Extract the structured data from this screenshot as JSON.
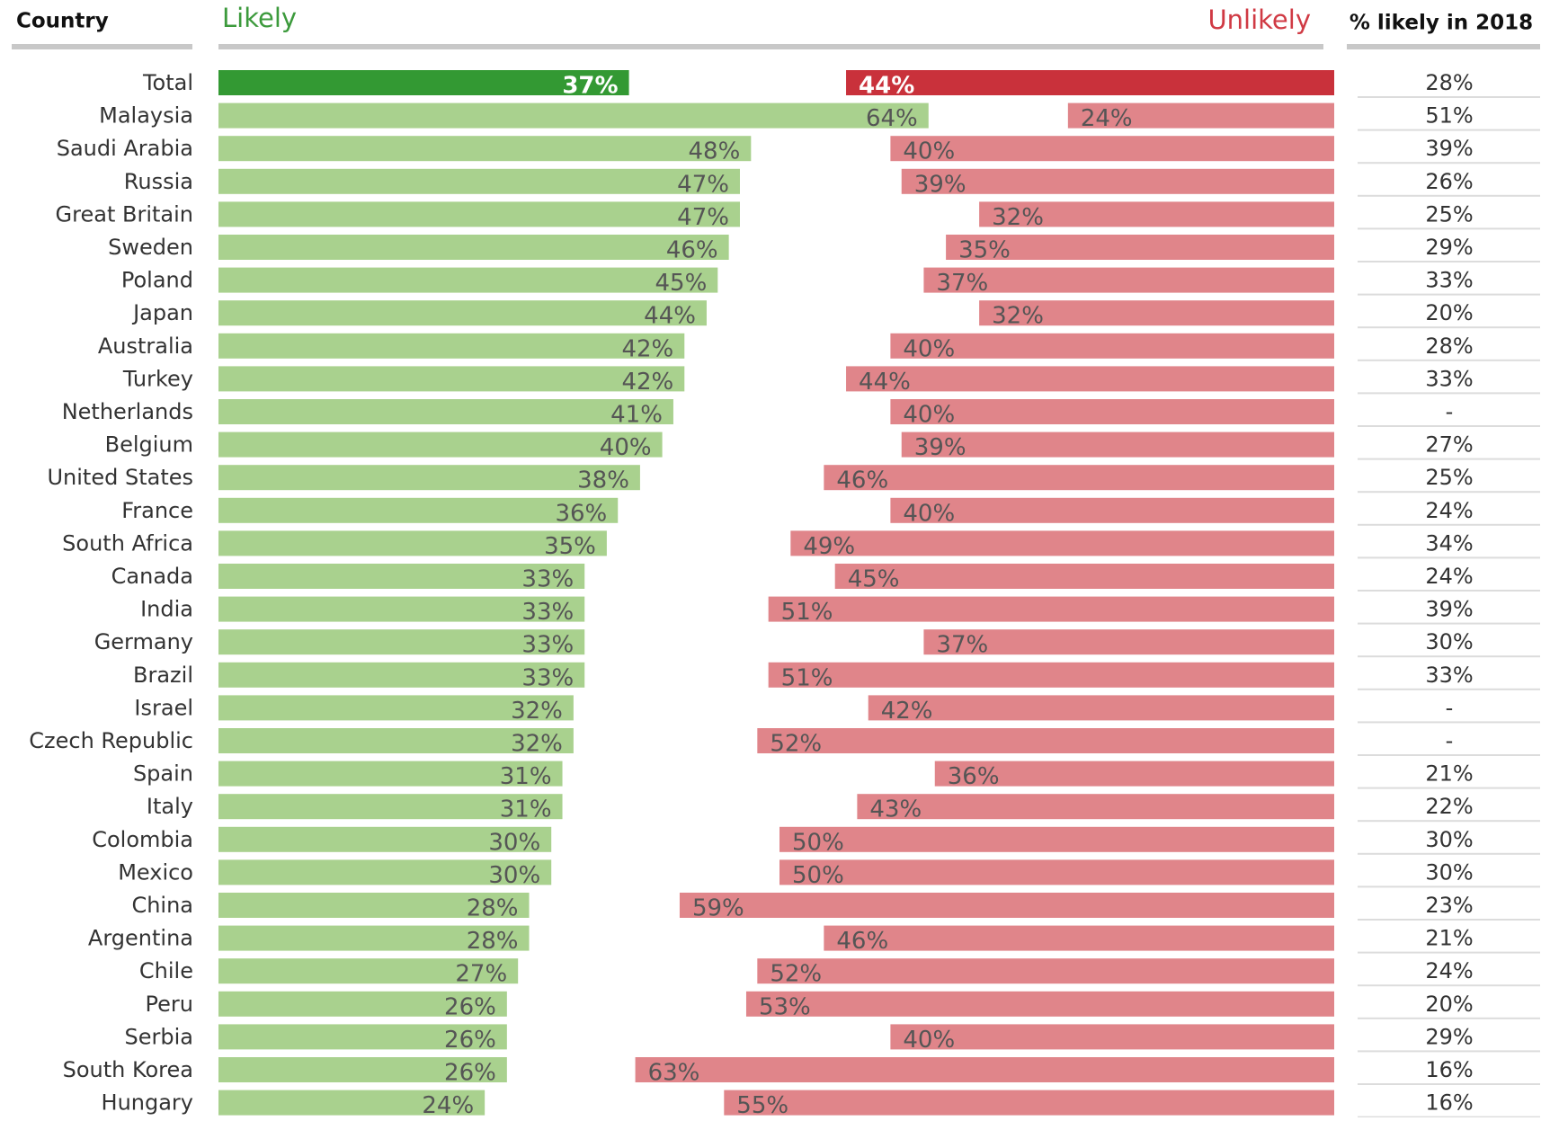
{
  "chart_data": {
    "type": "diverging_bar",
    "category_label": "Country",
    "categories": [
      "Total",
      "Malaysia",
      "Saudi Arabia",
      "Russia",
      "Great Britain",
      "Sweden",
      "Poland",
      "Japan",
      "Australia",
      "Turkey",
      "Netherlands",
      "Belgium",
      "United States",
      "France",
      "South Africa",
      "Canada",
      "India",
      "Germany",
      "Brazil",
      "Israel",
      "Czech Republic",
      "Spain",
      "Italy",
      "Colombia",
      "Mexico",
      "China",
      "Argentina",
      "Chile",
      "Peru",
      "Serbia",
      "South Korea",
      "Hungary"
    ],
    "highlight_index": 0,
    "series": [
      {
        "name": "Likely",
        "color": "#a9d18e",
        "highlight_color": "#339933",
        "header_color": "#3c9a3c",
        "values": [
          37,
          64,
          48,
          47,
          47,
          46,
          45,
          44,
          42,
          42,
          41,
          40,
          38,
          36,
          35,
          33,
          33,
          33,
          33,
          32,
          32,
          31,
          31,
          30,
          30,
          28,
          28,
          27,
          26,
          26,
          26,
          24
        ],
        "value_labels": [
          "37%",
          "64%",
          "48%",
          "47%",
          "47%",
          "46%",
          "45%",
          "44%",
          "42%",
          "42%",
          "41%",
          "40%",
          "38%",
          "36%",
          "35%",
          "33%",
          "33%",
          "33%",
          "33%",
          "32%",
          "32%",
          "31%",
          "31%",
          "30%",
          "30%",
          "28%",
          "28%",
          "27%",
          "26%",
          "26%",
          "26%",
          "24%"
        ]
      },
      {
        "name": "Unlikely",
        "color": "#e0858a",
        "highlight_color": "#c9313b",
        "header_color": "#d03a44",
        "values": [
          44,
          24,
          40,
          39,
          32,
          35,
          37,
          32,
          40,
          44,
          40,
          39,
          46,
          40,
          49,
          45,
          51,
          37,
          51,
          42,
          52,
          36,
          43,
          50,
          50,
          59,
          46,
          52,
          53,
          40,
          63,
          55
        ],
        "value_labels": [
          "44%",
          "24%",
          "40%",
          "39%",
          "32%",
          "35%",
          "37%",
          "32%",
          "40%",
          "44%",
          "40%",
          "39%",
          "46%",
          "40%",
          "49%",
          "45%",
          "51%",
          "37%",
          "51%",
          "42%",
          "52%",
          "36%",
          "43%",
          "50%",
          "50%",
          "59%",
          "46%",
          "52%",
          "53%",
          "40%",
          "63%",
          "55%"
        ]
      }
    ],
    "column": {
      "header": "% likely in 2018",
      "values": [
        "28%",
        "51%",
        "39%",
        "26%",
        "25%",
        "29%",
        "33%",
        "20%",
        "28%",
        "33%",
        "-",
        "27%",
        "25%",
        "24%",
        "34%",
        "24%",
        "39%",
        "30%",
        "33%",
        "-",
        "-",
        "21%",
        "22%",
        "30%",
        "30%",
        "23%",
        "21%",
        "24%",
        "20%",
        "29%",
        "16%",
        "16%"
      ]
    }
  }
}
